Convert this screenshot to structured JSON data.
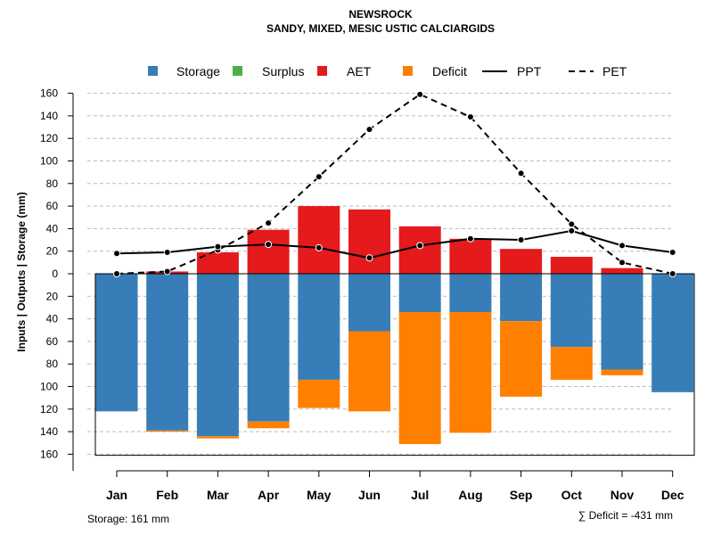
{
  "chart_data": {
    "type": "bar",
    "title": "NEWSROCK",
    "subtitle": "SANDY, MIXED, MESIC USTIC CALCIARGIDS",
    "ylabel": "Inputs | Outputs | Storage    (mm)",
    "categories": [
      "Jan",
      "Feb",
      "Mar",
      "Apr",
      "May",
      "Jun",
      "Jul",
      "Aug",
      "Sep",
      "Oct",
      "Nov",
      "Dec"
    ],
    "ylim": [
      -160,
      160
    ],
    "yticks": [
      160,
      140,
      120,
      100,
      80,
      60,
      40,
      20,
      0,
      -20,
      -40,
      -60,
      -80,
      -100,
      -120,
      -140,
      -160
    ],
    "ytick_labels": [
      "160",
      "140",
      "120",
      "100",
      "80",
      "60",
      "40",
      "20",
      "0",
      "20",
      "40",
      "60",
      "80",
      "100",
      "120",
      "140",
      "160"
    ],
    "legend": {
      "placement": "top",
      "items": [
        {
          "label": "Storage",
          "type": "box",
          "color": "#377EB8"
        },
        {
          "label": "Surplus",
          "type": "box",
          "color": "#4DAF4A"
        },
        {
          "label": "AET",
          "type": "box",
          "color": "#E41A1C"
        },
        {
          "label": "Deficit",
          "type": "box",
          "color": "#FF7F00"
        },
        {
          "label": "PPT",
          "type": "solid"
        },
        {
          "label": "PET",
          "type": "dashed"
        }
      ]
    },
    "series": [
      {
        "name": "AET",
        "color": "#E41A1C",
        "values": [
          0,
          2,
          19,
          39,
          60,
          57,
          42,
          31,
          22,
          15,
          5,
          0
        ]
      },
      {
        "name": "Storage",
        "color": "#377EB8",
        "values": [
          122,
          139,
          144,
          131,
          94,
          51,
          34,
          34,
          42,
          65,
          85,
          105
        ]
      },
      {
        "name": "Deficit",
        "color": "#FF7F00",
        "values": [
          0,
          1,
          2,
          6,
          25,
          71,
          117,
          107,
          67,
          29,
          5,
          0
        ]
      },
      {
        "name": "Surplus",
        "color": "#4DAF4A",
        "values": [
          0,
          0,
          0,
          0,
          0,
          0,
          0,
          0,
          0,
          0,
          0,
          0
        ]
      },
      {
        "name": "PPT",
        "values": [
          18,
          19,
          24,
          26,
          23,
          14,
          25,
          31,
          30,
          38,
          25,
          19
        ]
      },
      {
        "name": "PET",
        "values": [
          0,
          2,
          21,
          45,
          86,
          128,
          159,
          139,
          89,
          44,
          10,
          0
        ]
      }
    ],
    "storage_note": "Storage: 161 mm",
    "deficit_note": "∑ Deficit = -431 mm",
    "storage_capacity": 161
  }
}
